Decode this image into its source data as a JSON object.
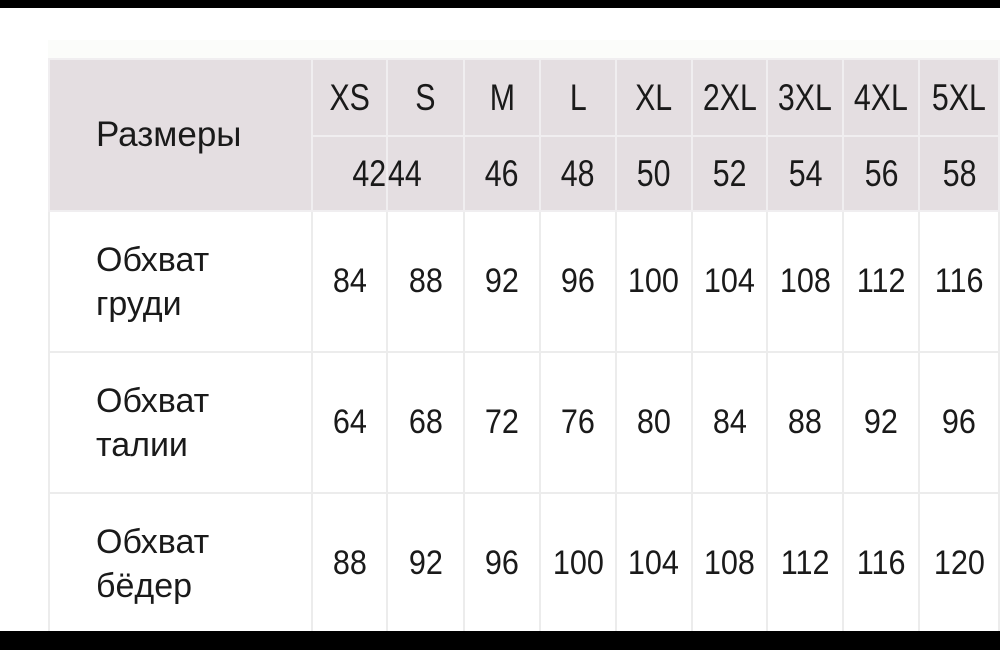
{
  "table": {
    "corner_label": "Размеры",
    "letter_sizes": [
      "XS",
      "S",
      "M",
      "L",
      "XL",
      "2XL",
      "3XL",
      "4XL",
      "5XL"
    ],
    "numeric_sizes": [
      "42",
      "44",
      "46",
      "48",
      "50",
      "52",
      "54",
      "56",
      "58"
    ],
    "rows": [
      {
        "label_line1": "Обхват",
        "label_line2": "груди",
        "values": [
          "84",
          "88",
          "92",
          "96",
          "100",
          "104",
          "108",
          "112",
          "116"
        ]
      },
      {
        "label_line1": "Обхват",
        "label_line2": "талии",
        "values": [
          "64",
          "68",
          "72",
          "76",
          "80",
          "84",
          "88",
          "92",
          "96"
        ]
      },
      {
        "label_line1": "Обхват",
        "label_line2": "бёдер",
        "values": [
          "88",
          "92",
          "96",
          "100",
          "104",
          "108",
          "112",
          "116",
          "120"
        ]
      }
    ]
  },
  "colors": {
    "header_bg": "#e4dee1",
    "grid": "#ececec"
  }
}
